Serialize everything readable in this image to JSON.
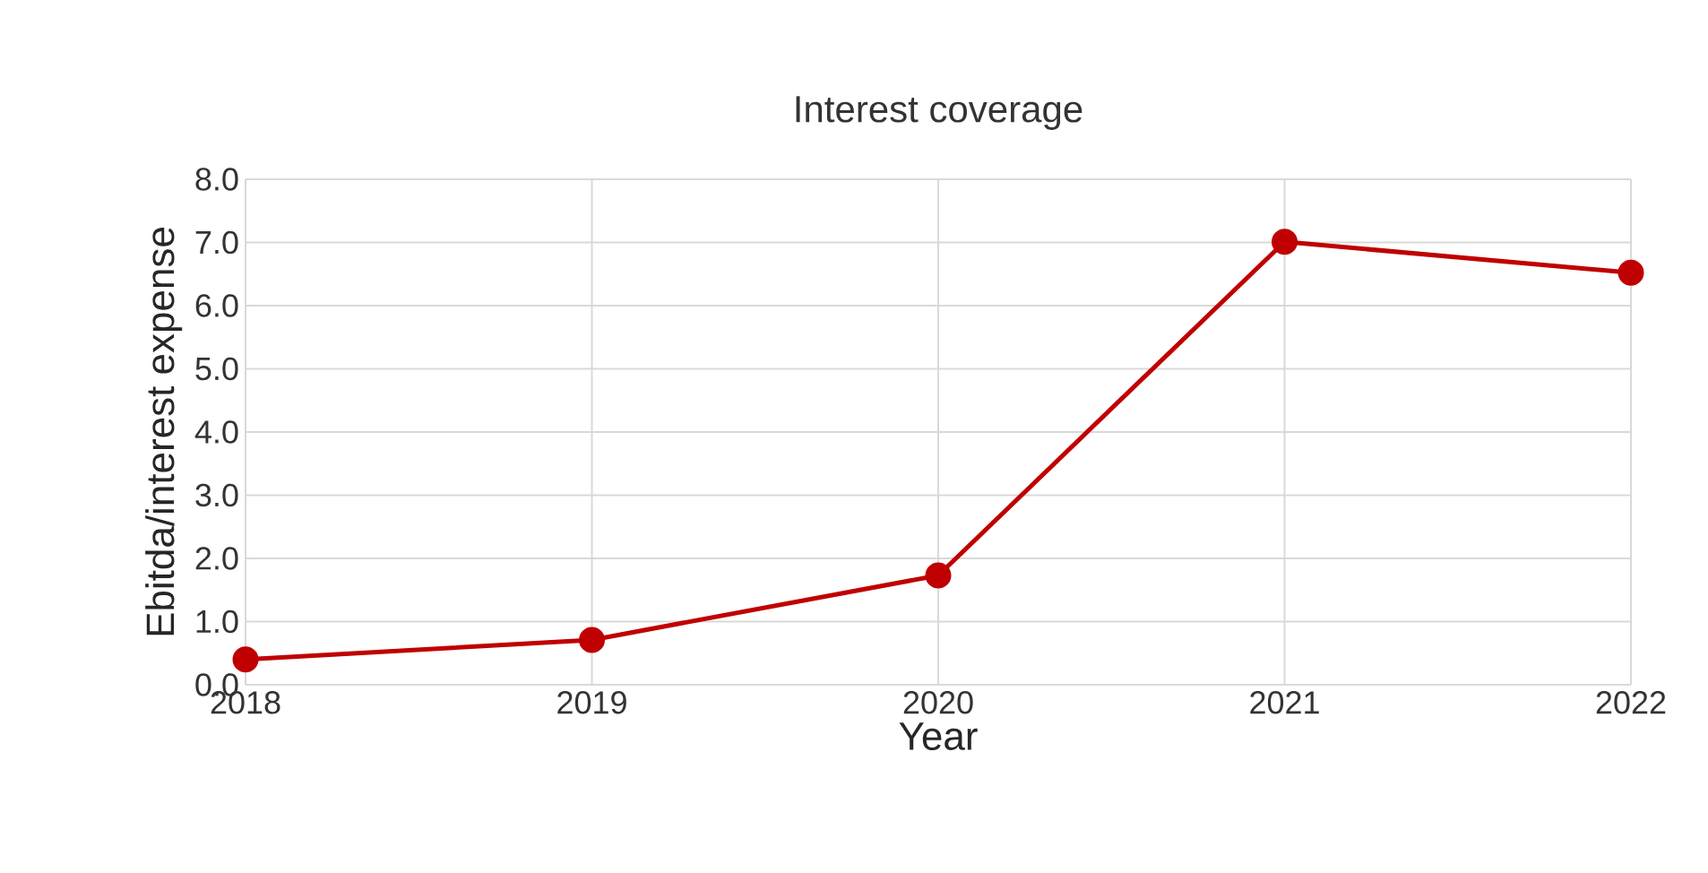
{
  "chart_data": {
    "type": "line",
    "title": "Interest coverage",
    "xlabel": "Year",
    "ylabel": "Ebitda/interest expense",
    "x": [
      2018,
      2019,
      2020,
      2021,
      2022
    ],
    "series": [
      {
        "color": "#c00000",
        "values": [
          0.4,
          0.71,
          1.73,
          7.01,
          6.52
        ]
      }
    ],
    "xlim": [
      2018,
      2022
    ],
    "xticks": [
      2018,
      2019,
      2020,
      2021,
      2022
    ],
    "ylim": [
      0,
      8
    ],
    "yticks": [
      {
        "value": 0,
        "label": "0.0"
      },
      {
        "value": 1,
        "label": "1.0"
      },
      {
        "value": 2,
        "label": "2.0"
      },
      {
        "value": 3,
        "label": "3.0"
      },
      {
        "value": 4,
        "label": "4.0"
      },
      {
        "value": 5,
        "label": "5.0"
      },
      {
        "value": 6,
        "label": "6.0"
      },
      {
        "value": 7,
        "label": "7.0"
      },
      {
        "value": 8,
        "label": "8.0"
      }
    ],
    "grid": true,
    "marker": "circle",
    "line_style": "solid"
  }
}
